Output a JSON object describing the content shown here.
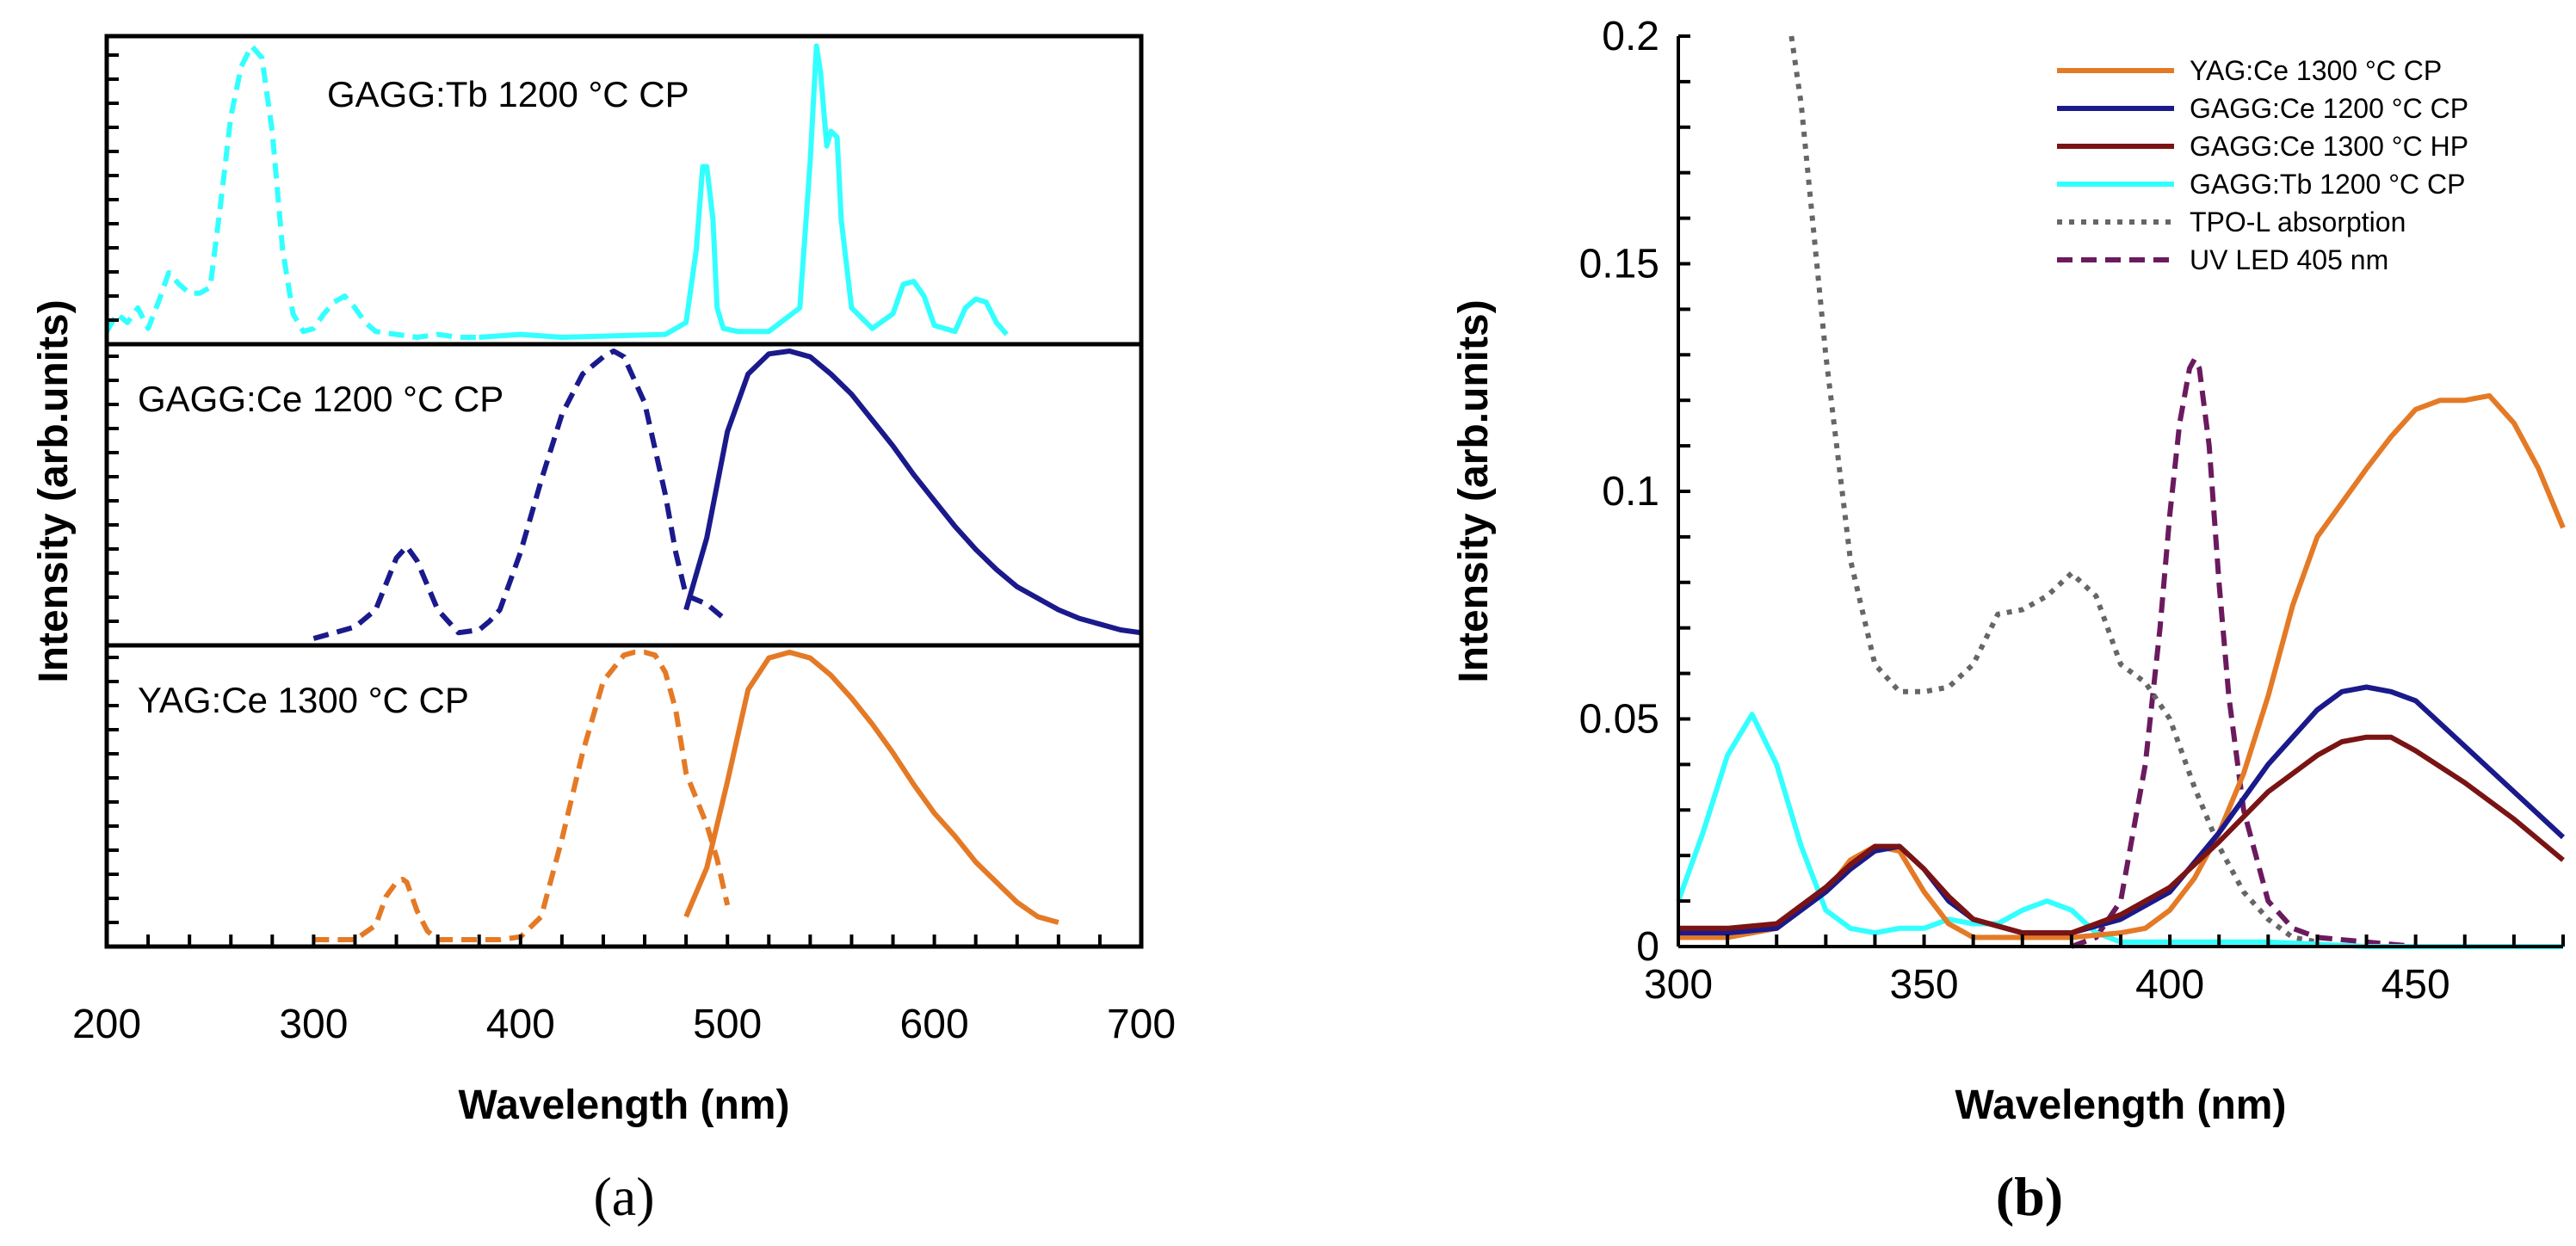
{
  "figure": {
    "label_a": "a",
    "label_b": "b"
  },
  "chart_data": [
    {
      "id": "a",
      "type": "line",
      "xlabel": "Wavelength (nm)",
      "ylabel": "Intensity (arb.units)",
      "xlim": [
        200,
        700
      ],
      "xticks": [
        200,
        300,
        400,
        500,
        600,
        700
      ],
      "tick_labels": [
        "200",
        "300",
        "400",
        "500",
        "600",
        "700"
      ],
      "note": "Stacked normalized spectra; each band y range 0-1. Dashed = excitation, solid = emission.",
      "bands": [
        {
          "name": "GAGG:Tb 1200 °C CP",
          "color": "#33ffff",
          "series": [
            {
              "kind": "excitation",
              "style": "dashed",
              "x": [
                200,
                205,
                210,
                215,
                220,
                225,
                230,
                235,
                240,
                245,
                250,
                255,
                260,
                265,
                270,
                275,
                280,
                285,
                290,
                295,
                300,
                305,
                310,
                315,
                320,
                325,
                330,
                340,
                350,
                360,
                370,
                380
              ],
              "y": [
                0.02,
                0.08,
                0.05,
                0.1,
                0.03,
                0.12,
                0.22,
                0.18,
                0.15,
                0.15,
                0.17,
                0.45,
                0.75,
                0.92,
                0.99,
                0.95,
                0.7,
                0.3,
                0.08,
                0.02,
                0.03,
                0.08,
                0.12,
                0.14,
                0.1,
                0.05,
                0.02,
                0.01,
                0.0,
                0.01,
                0.0,
                0.0
              ]
            },
            {
              "kind": "emission",
              "style": "solid",
              "x": [
                380,
                400,
                420,
                470,
                480,
                485,
                488,
                490,
                493,
                495,
                498,
                505,
                520,
                535,
                540,
                543,
                545,
                548,
                550,
                553,
                555,
                560,
                570,
                580,
                585,
                590,
                595,
                600,
                610,
                615,
                620,
                625,
                630,
                635
              ],
              "y": [
                0.0,
                0.01,
                0.0,
                0.01,
                0.05,
                0.3,
                0.58,
                0.58,
                0.4,
                0.1,
                0.03,
                0.02,
                0.02,
                0.1,
                0.6,
                0.99,
                0.9,
                0.65,
                0.7,
                0.68,
                0.4,
                0.1,
                0.03,
                0.08,
                0.18,
                0.19,
                0.14,
                0.04,
                0.02,
                0.1,
                0.13,
                0.12,
                0.05,
                0.01
              ]
            }
          ]
        },
        {
          "name": "GAGG:Ce 1200 °C CP",
          "color": "#1a1a8c",
          "series": [
            {
              "kind": "excitation",
              "style": "dashed",
              "x": [
                300,
                310,
                320,
                330,
                340,
                345,
                350,
                360,
                370,
                380,
                385,
                390,
                400,
                410,
                420,
                430,
                440,
                445,
                450,
                460,
                470,
                475,
                480,
                490,
                500
              ],
              "y": [
                0.0,
                0.02,
                0.04,
                0.1,
                0.28,
                0.32,
                0.27,
                0.1,
                0.02,
                0.03,
                0.06,
                0.1,
                0.3,
                0.55,
                0.78,
                0.92,
                0.98,
                1.0,
                0.98,
                0.82,
                0.5,
                0.3,
                0.15,
                0.12,
                0.06
              ]
            },
            {
              "kind": "emission",
              "style": "solid",
              "x": [
                480,
                490,
                500,
                510,
                520,
                530,
                535,
                540,
                550,
                560,
                570,
                580,
                590,
                600,
                610,
                620,
                630,
                640,
                650,
                660,
                670,
                680,
                690,
                700
              ],
              "y": [
                0.1,
                0.35,
                0.72,
                0.92,
                0.99,
                1.0,
                0.99,
                0.98,
                0.92,
                0.85,
                0.76,
                0.67,
                0.57,
                0.48,
                0.39,
                0.31,
                0.24,
                0.18,
                0.14,
                0.1,
                0.07,
                0.05,
                0.03,
                0.02
              ]
            }
          ]
        },
        {
          "name": "YAG:Ce 1300 °C CP",
          "color": "#e47a26",
          "series": [
            {
              "kind": "excitation",
              "style": "dashed",
              "x": [
                300,
                320,
                330,
                335,
                340,
                343,
                345,
                350,
                355,
                360,
                380,
                390,
                400,
                410,
                420,
                430,
                440,
                450,
                455,
                460,
                465,
                470,
                475,
                480,
                490,
                495,
                500
              ],
              "y": [
                0.0,
                0.0,
                0.05,
                0.15,
                0.2,
                0.21,
                0.2,
                0.1,
                0.03,
                0.0,
                0.0,
                0.0,
                0.01,
                0.08,
                0.35,
                0.65,
                0.9,
                0.99,
                1.0,
                1.0,
                0.99,
                0.93,
                0.8,
                0.58,
                0.4,
                0.28,
                0.12
              ]
            },
            {
              "kind": "emission",
              "style": "solid",
              "x": [
                480,
                490,
                500,
                510,
                520,
                530,
                540,
                550,
                560,
                570,
                580,
                590,
                600,
                610,
                620,
                630,
                640,
                650,
                660
              ],
              "y": [
                0.08,
                0.25,
                0.55,
                0.87,
                0.98,
                1.0,
                0.98,
                0.92,
                0.84,
                0.75,
                0.65,
                0.54,
                0.44,
                0.36,
                0.27,
                0.2,
                0.13,
                0.08,
                0.06
              ]
            }
          ]
        }
      ]
    },
    {
      "id": "b",
      "type": "line",
      "xlabel": "Wavelength (nm)",
      "ylabel": "Intensity (arb.units)",
      "xlim": [
        300,
        480
      ],
      "ylim": [
        0,
        0.2
      ],
      "xticks": [
        300,
        350,
        400,
        450
      ],
      "x_tick_labels": [
        "300",
        "350",
        "400",
        "450"
      ],
      "yticks": [
        0,
        0.05,
        0.1,
        0.15,
        0.2
      ],
      "y_tick_labels": [
        "0",
        "0.05",
        "0.1",
        "0.15",
        "0.2"
      ],
      "legend_position": "top-right",
      "series": [
        {
          "name": "YAG:Ce 1300 °C CP",
          "color": "#e47a26",
          "style": "solid",
          "x": [
            300,
            310,
            320,
            330,
            335,
            340,
            345,
            350,
            355,
            360,
            370,
            380,
            390,
            395,
            400,
            405,
            410,
            415,
            420,
            425,
            430,
            440,
            445,
            450,
            455,
            460,
            465,
            470,
            475,
            480
          ],
          "y": [
            0.002,
            0.002,
            0.004,
            0.012,
            0.019,
            0.022,
            0.021,
            0.012,
            0.005,
            0.002,
            0.002,
            0.002,
            0.003,
            0.004,
            0.008,
            0.015,
            0.025,
            0.038,
            0.055,
            0.075,
            0.09,
            0.105,
            0.112,
            0.118,
            0.12,
            0.12,
            0.121,
            0.115,
            0.105,
            0.092
          ]
        },
        {
          "name": "GAGG:Ce 1200 °C CP",
          "color": "#1a1a8c",
          "style": "solid",
          "x": [
            300,
            310,
            320,
            330,
            335,
            340,
            345,
            350,
            355,
            360,
            370,
            380,
            390,
            400,
            410,
            420,
            430,
            435,
            440,
            445,
            450,
            460,
            470,
            480
          ],
          "y": [
            0.003,
            0.003,
            0.004,
            0.012,
            0.017,
            0.021,
            0.022,
            0.017,
            0.01,
            0.006,
            0.003,
            0.003,
            0.006,
            0.012,
            0.025,
            0.04,
            0.052,
            0.056,
            0.057,
            0.056,
            0.054,
            0.044,
            0.034,
            0.024
          ]
        },
        {
          "name": "GAGG:Ce 1300 °C HP",
          "color": "#7a1414",
          "style": "solid",
          "x": [
            300,
            310,
            320,
            330,
            335,
            340,
            345,
            350,
            355,
            360,
            370,
            380,
            390,
            400,
            410,
            420,
            430,
            435,
            440,
            445,
            450,
            460,
            470,
            480
          ],
          "y": [
            0.004,
            0.004,
            0.005,
            0.013,
            0.018,
            0.022,
            0.022,
            0.017,
            0.011,
            0.006,
            0.003,
            0.003,
            0.007,
            0.013,
            0.023,
            0.034,
            0.042,
            0.045,
            0.046,
            0.046,
            0.043,
            0.036,
            0.028,
            0.019
          ]
        },
        {
          "name": "GAGG:Tb 1200 °C CP",
          "color": "#33ffff",
          "style": "solid",
          "x": [
            300,
            305,
            310,
            315,
            320,
            325,
            330,
            335,
            340,
            345,
            350,
            355,
            360,
            365,
            370,
            375,
            380,
            385,
            390,
            400,
            420,
            440,
            460,
            480
          ],
          "y": [
            0.01,
            0.025,
            0.042,
            0.051,
            0.04,
            0.022,
            0.008,
            0.004,
            0.003,
            0.004,
            0.004,
            0.006,
            0.005,
            0.005,
            0.008,
            0.01,
            0.008,
            0.003,
            0.001,
            0.001,
            0.001,
            0.0,
            0.0,
            0.0
          ]
        },
        {
          "name": "TPO-L absorption",
          "color": "#666666",
          "style": "dotted",
          "x": [
            323,
            325,
            330,
            335,
            340,
            345,
            350,
            355,
            360,
            365,
            370,
            375,
            380,
            385,
            390,
            395,
            400,
            405,
            410,
            415,
            420,
            425,
            430
          ],
          "y": [
            0.2,
            0.185,
            0.13,
            0.085,
            0.062,
            0.056,
            0.056,
            0.057,
            0.062,
            0.073,
            0.074,
            0.077,
            0.082,
            0.077,
            0.062,
            0.058,
            0.05,
            0.035,
            0.022,
            0.012,
            0.006,
            0.002,
            0.001
          ]
        },
        {
          "name": "UV LED 405 nm",
          "color": "#6b1a5e",
          "style": "dashed",
          "x": [
            380,
            385,
            390,
            395,
            398,
            400,
            402,
            404,
            405,
            406,
            408,
            410,
            412,
            415,
            420,
            425,
            430,
            440,
            450
          ],
          "y": [
            0.0,
            0.002,
            0.01,
            0.04,
            0.07,
            0.095,
            0.115,
            0.127,
            0.129,
            0.127,
            0.11,
            0.08,
            0.055,
            0.03,
            0.01,
            0.004,
            0.002,
            0.001,
            0.0
          ]
        }
      ]
    }
  ]
}
